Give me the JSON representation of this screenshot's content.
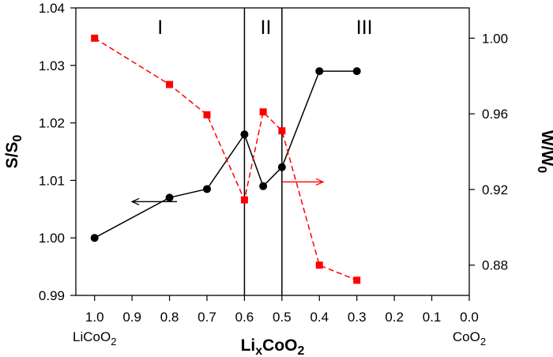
{
  "chart_data": {
    "type": "line",
    "x_axis": {
      "label_main": "Li",
      "label_sub": "x",
      "label_rest": "CoO",
      "label_sub2": "2",
      "lim": [
        1.05,
        0.0
      ],
      "ticks": [
        1.0,
        0.9,
        0.8,
        0.7,
        0.6,
        0.5,
        0.4,
        0.3,
        0.2,
        0.1,
        0.0
      ],
      "tick_labels": [
        "1.0",
        "0.9",
        "0.8",
        "0.7",
        "0.6",
        "0.5",
        "0.4",
        "0.3",
        "0.2",
        "0.1",
        "0.0"
      ],
      "left_end_label": "LiCoO",
      "left_end_sub": "2",
      "right_end_label": "CoO",
      "right_end_sub": "2"
    },
    "y_left": {
      "label_main": "S/S",
      "label_sub": "0",
      "lim": [
        0.99,
        1.04
      ],
      "ticks": [
        0.99,
        1.0,
        1.01,
        1.02,
        1.03,
        1.04
      ],
      "tick_labels": [
        "0.99",
        "1.00",
        "1.01",
        "1.02",
        "1.03",
        "1.04"
      ]
    },
    "y_right": {
      "label_main": "W/W",
      "label_sub": "0",
      "lim": [
        0.864,
        1.016
      ],
      "ticks": [
        0.88,
        0.92,
        0.96,
        1.0
      ],
      "tick_labels": [
        "0.88",
        "0.92",
        "0.96",
        "1.00"
      ]
    },
    "series": [
      {
        "axis": "left",
        "color": "#000000",
        "marker": "circle",
        "line": "solid",
        "x": [
          1.0,
          0.8,
          0.7,
          0.6,
          0.55,
          0.5,
          0.4,
          0.3
        ],
        "y": [
          1.0,
          1.007,
          1.0085,
          1.018,
          1.009,
          1.0123,
          1.029,
          1.029
        ]
      },
      {
        "axis": "right",
        "color": "#ff0000",
        "marker": "square",
        "line": "dashed",
        "x": [
          1.0,
          0.8,
          0.7,
          0.6,
          0.55,
          0.5,
          0.4,
          0.3
        ],
        "y": [
          1.0,
          0.9755,
          0.9595,
          0.9145,
          0.961,
          0.951,
          0.88,
          0.872
        ]
      }
    ],
    "vertical_lines": [
      0.6,
      0.5
    ],
    "regions": [
      {
        "label": "I",
        "x": 0.825,
        "y": 1.0355
      },
      {
        "label": "II",
        "x": 0.543,
        "y": 1.0355
      },
      {
        "label": "III",
        "x": 0.28,
        "y": 1.0355
      }
    ],
    "arrows": [
      {
        "series_axis": "left",
        "direction": "left",
        "x_from": 0.78,
        "x_to": 0.9,
        "y": 1.0063,
        "color": "#000000"
      },
      {
        "series_axis": "right",
        "direction": "right",
        "x_from": 0.5,
        "x_to": 0.39,
        "y": 0.924,
        "color": "#ff0000"
      }
    ],
    "grid": false
  }
}
